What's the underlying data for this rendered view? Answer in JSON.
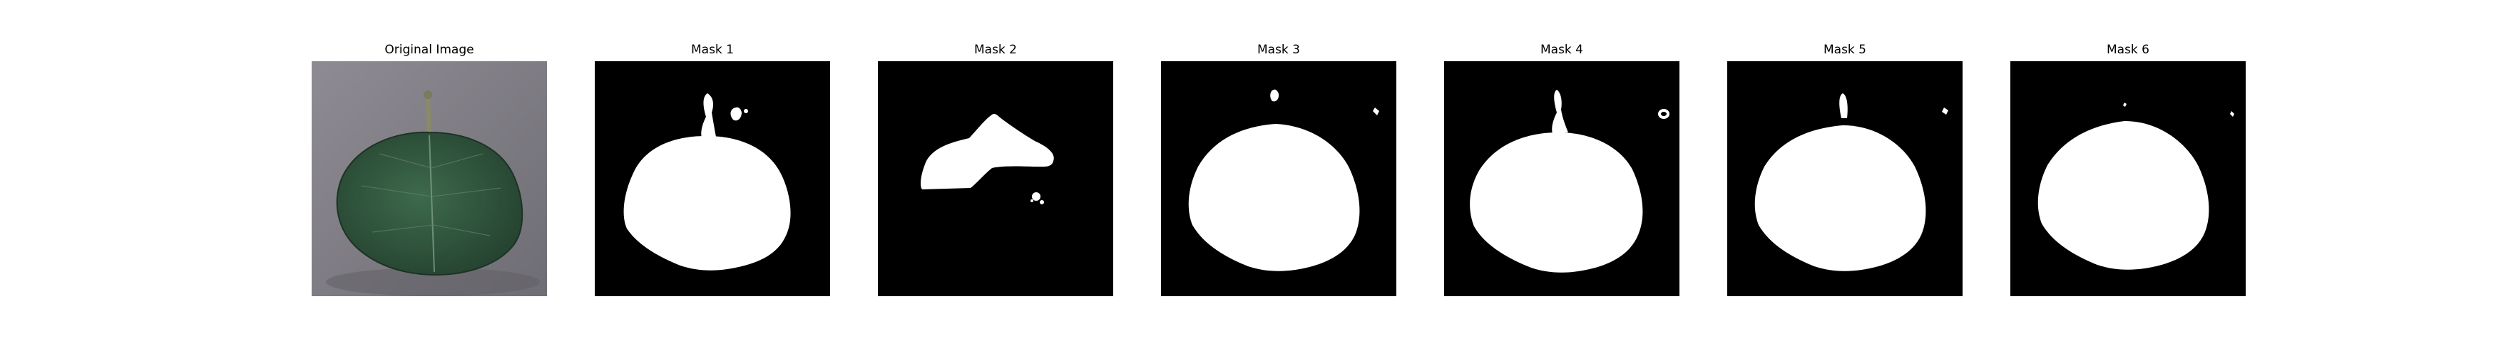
{
  "figure": {
    "panels": [
      {
        "title": "Original Image",
        "kind": "photo",
        "image_desc": "green leaf photo on grey background"
      },
      {
        "title": "Mask 1",
        "kind": "mask",
        "image_desc": "leaf mask with stem"
      },
      {
        "title": "Mask 2",
        "kind": "mask",
        "image_desc": "partial leaf mask"
      },
      {
        "title": "Mask 3",
        "kind": "mask",
        "image_desc": "leaf mask"
      },
      {
        "title": "Mask 4",
        "kind": "mask",
        "image_desc": "leaf mask with stem"
      },
      {
        "title": "Mask 5",
        "kind": "mask",
        "image_desc": "leaf mask"
      },
      {
        "title": "Mask 6",
        "kind": "mask",
        "image_desc": "leaf mask"
      }
    ]
  },
  "colors": {
    "background": "#ffffff",
    "mask_bg": "#000000",
    "mask_fg": "#ffffff",
    "photo_bg": "#8f8e94",
    "leaf": "#2f4f3b"
  }
}
